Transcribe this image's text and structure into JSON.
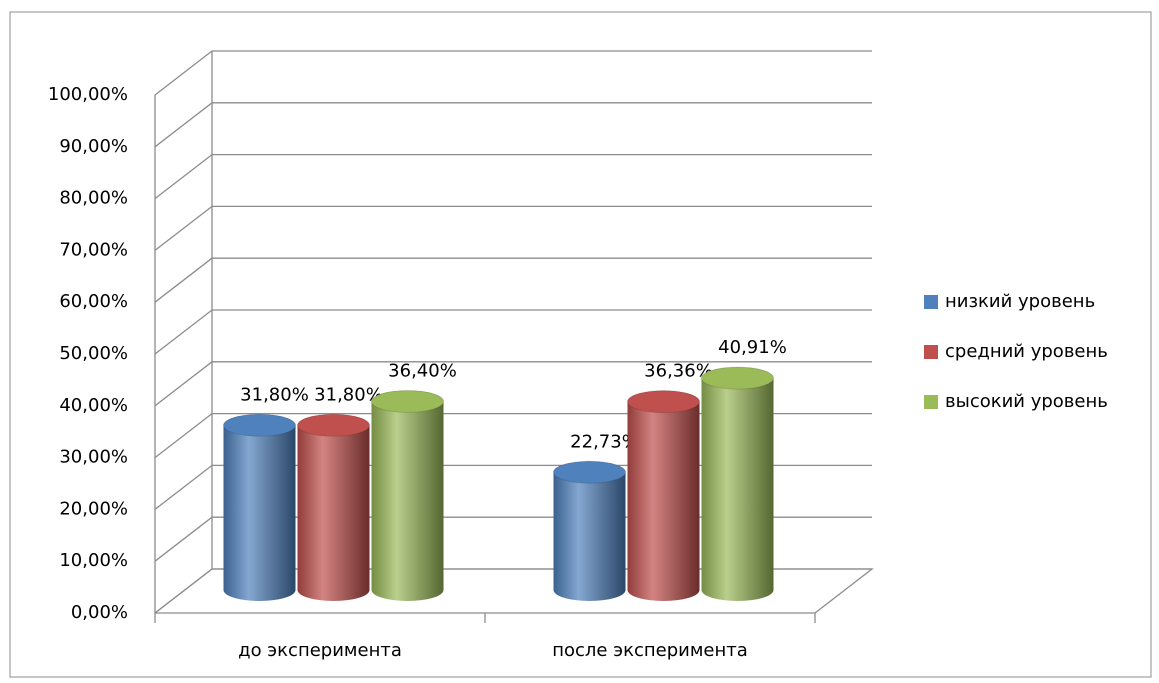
{
  "chart_data": {
    "type": "bar3d",
    "categories": [
      "до эксперимента",
      "после эксперимента"
    ],
    "series": [
      {
        "name": "низкий уровень",
        "color": "#4f81bd",
        "values": [
          31.8,
          22.73
        ],
        "value_labels": [
          "31,80%",
          "22,73%"
        ]
      },
      {
        "name": "средний уровень",
        "color": "#c0504d",
        "values": [
          31.8,
          36.36
        ],
        "value_labels": [
          "31,80%",
          "36,36%"
        ]
      },
      {
        "name": "высокий уровень",
        "color": "#9bbb59",
        "values": [
          36.4,
          40.91
        ],
        "value_labels": [
          "36,40%",
          "40,91%"
        ]
      }
    ],
    "ylim": [
      0,
      100
    ],
    "yticks": [
      {
        "value": 0,
        "label": "0,00%"
      },
      {
        "value": 10,
        "label": "10,00%"
      },
      {
        "value": 20,
        "label": "20,00%"
      },
      {
        "value": 30,
        "label": "30,00%"
      },
      {
        "value": 40,
        "label": "40,00%"
      },
      {
        "value": 50,
        "label": "50,00%"
      },
      {
        "value": 60,
        "label": "60,00%"
      },
      {
        "value": 70,
        "label": "70,00%"
      },
      {
        "value": 80,
        "label": "80,00%"
      },
      {
        "value": 90,
        "label": "90,00%"
      },
      {
        "value": 100,
        "label": "100,00%"
      }
    ],
    "grid": true,
    "legend": "right"
  }
}
